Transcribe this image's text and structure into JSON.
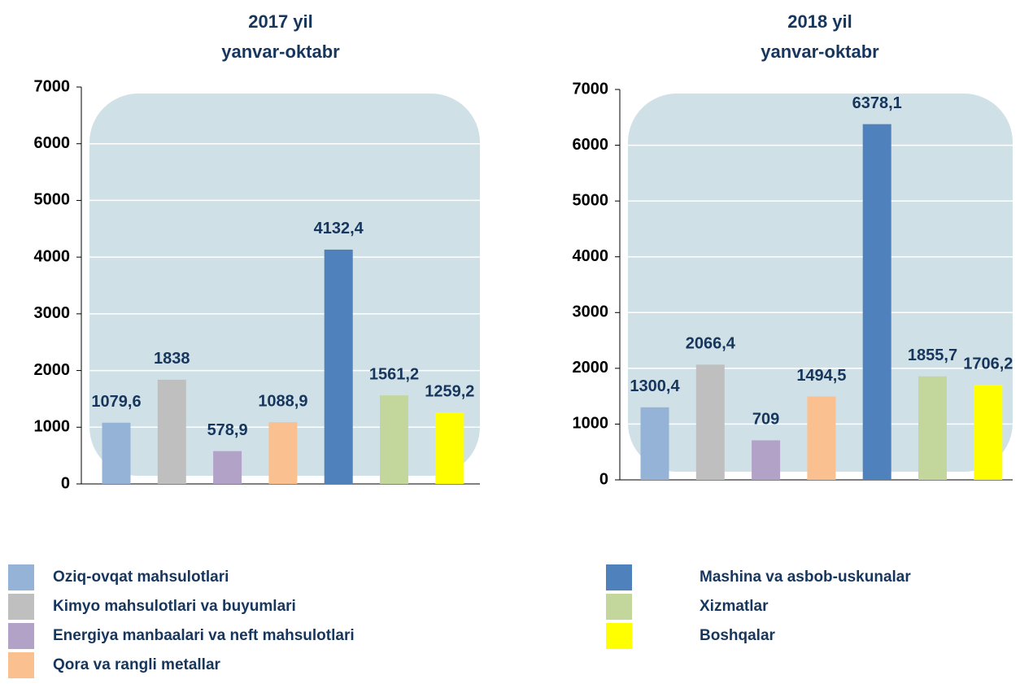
{
  "legend": {
    "categories": [
      "Oziq-ovqat mahsulotlari",
      "Kimyo mahsulotlari va buyumlari",
      "Energiya manbaalari va neft mahsulotlari",
      "Qora va rangli metallar",
      "Mashina va asbob-uskunalar",
      "Xizmatlar",
      "Boshqalar"
    ],
    "colors": [
      "#95b3d7",
      "#bfbfbf",
      "#b3a2c7",
      "#fac090",
      "#4f81bd",
      "#c3d69b",
      "#ffff00"
    ]
  },
  "chart_data": [
    {
      "type": "bar",
      "title": "2017 yil",
      "subtitle": "yanvar-oktabr",
      "values": [
        1079.6,
        1838,
        578.9,
        1088.9,
        4132.4,
        1561.2,
        1259.2
      ],
      "value_labels": [
        "1079,6",
        "1838",
        "578,9",
        "1088,9",
        "4132,4",
        "1561,2",
        "1259,2"
      ],
      "ylim": [
        0,
        7000
      ],
      "yticks": [
        0,
        1000,
        2000,
        3000,
        4000,
        5000,
        6000,
        7000
      ],
      "grid": true
    },
    {
      "type": "bar",
      "title": "2018 yil",
      "subtitle": "yanvar-oktabr",
      "values": [
        1300.4,
        2066.4,
        709,
        1494.5,
        6378.1,
        1855.7,
        1706.2
      ],
      "value_labels": [
        "1300,4",
        "2066,4",
        "709",
        "1494,5",
        "6378,1",
        "1855,7",
        "1706,2"
      ],
      "ylim": [
        0,
        7000
      ],
      "yticks": [
        0,
        1000,
        2000,
        3000,
        4000,
        5000,
        6000,
        7000
      ],
      "grid": true
    }
  ]
}
